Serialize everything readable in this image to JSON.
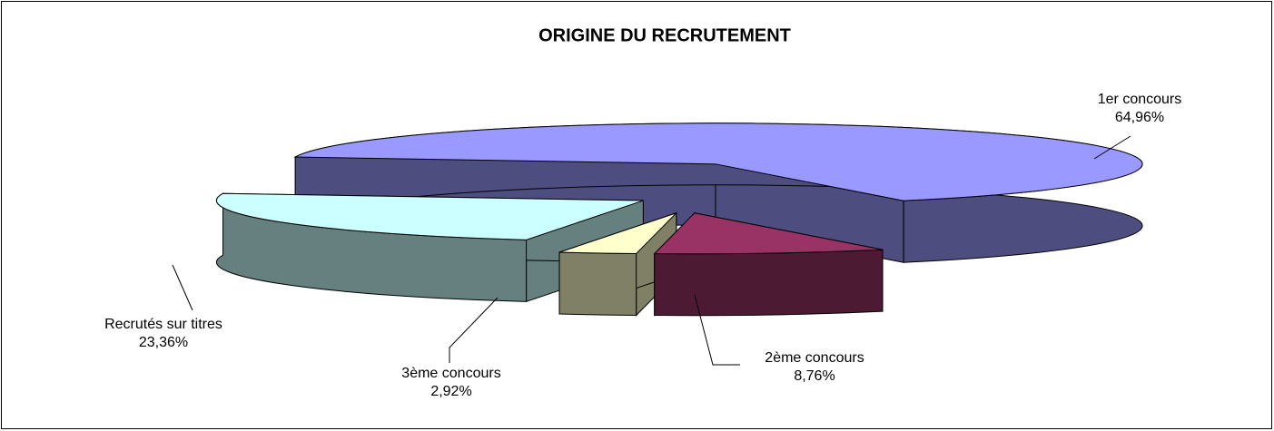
{
  "chart_data": {
    "type": "pie3d",
    "title": "ORIGINE DU RECRUTEMENT",
    "categories": [
      "1er concours",
      "2ème concours",
      "3ème concours",
      "Recrutés sur titres"
    ],
    "values": [
      64.96,
      8.76,
      2.92,
      23.36
    ],
    "value_labels": [
      "64,96%",
      "8,76%",
      "2,92%",
      "23,36%"
    ],
    "colors": [
      "#9999ff",
      "#993366",
      "#ffffcc",
      "#ccffff"
    ]
  }
}
